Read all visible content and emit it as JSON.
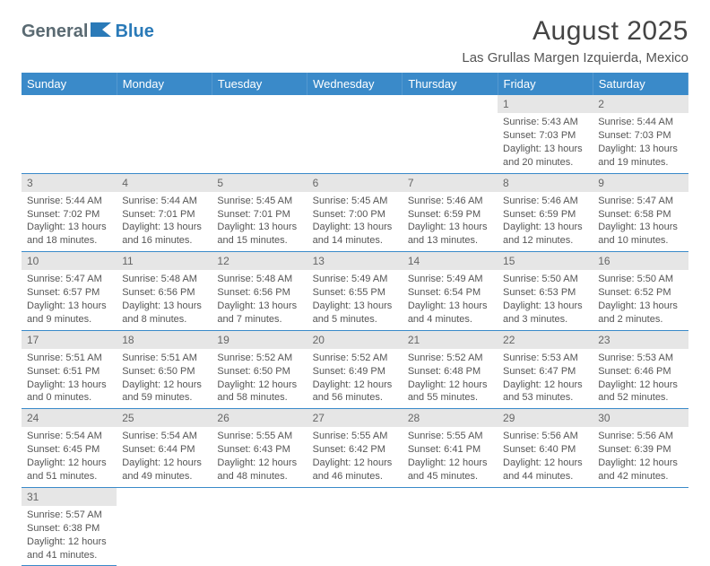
{
  "logo": {
    "part1": "General",
    "part2": "Blue"
  },
  "title": "August 2025",
  "location": "Las Grullas Margen Izquierda, Mexico",
  "colors": {
    "header_bg": "#3a8ac9",
    "header_fg": "#ffffff",
    "daynum_bg": "#e6e6e6",
    "daynum_fg": "#666666",
    "cell_border": "#3a8ac9",
    "body_text": "#555555",
    "logo_gray": "#5a6a72",
    "logo_blue": "#2a7ab8"
  },
  "weekdays": [
    "Sunday",
    "Monday",
    "Tuesday",
    "Wednesday",
    "Thursday",
    "Friday",
    "Saturday"
  ],
  "weeks": [
    [
      null,
      null,
      null,
      null,
      null,
      {
        "n": "1",
        "sr": "Sunrise: 5:43 AM",
        "ss": "Sunset: 7:03 PM",
        "dl": "Daylight: 13 hours and 20 minutes."
      },
      {
        "n": "2",
        "sr": "Sunrise: 5:44 AM",
        "ss": "Sunset: 7:03 PM",
        "dl": "Daylight: 13 hours and 19 minutes."
      }
    ],
    [
      {
        "n": "3",
        "sr": "Sunrise: 5:44 AM",
        "ss": "Sunset: 7:02 PM",
        "dl": "Daylight: 13 hours and 18 minutes."
      },
      {
        "n": "4",
        "sr": "Sunrise: 5:44 AM",
        "ss": "Sunset: 7:01 PM",
        "dl": "Daylight: 13 hours and 16 minutes."
      },
      {
        "n": "5",
        "sr": "Sunrise: 5:45 AM",
        "ss": "Sunset: 7:01 PM",
        "dl": "Daylight: 13 hours and 15 minutes."
      },
      {
        "n": "6",
        "sr": "Sunrise: 5:45 AM",
        "ss": "Sunset: 7:00 PM",
        "dl": "Daylight: 13 hours and 14 minutes."
      },
      {
        "n": "7",
        "sr": "Sunrise: 5:46 AM",
        "ss": "Sunset: 6:59 PM",
        "dl": "Daylight: 13 hours and 13 minutes."
      },
      {
        "n": "8",
        "sr": "Sunrise: 5:46 AM",
        "ss": "Sunset: 6:59 PM",
        "dl": "Daylight: 13 hours and 12 minutes."
      },
      {
        "n": "9",
        "sr": "Sunrise: 5:47 AM",
        "ss": "Sunset: 6:58 PM",
        "dl": "Daylight: 13 hours and 10 minutes."
      }
    ],
    [
      {
        "n": "10",
        "sr": "Sunrise: 5:47 AM",
        "ss": "Sunset: 6:57 PM",
        "dl": "Daylight: 13 hours and 9 minutes."
      },
      {
        "n": "11",
        "sr": "Sunrise: 5:48 AM",
        "ss": "Sunset: 6:56 PM",
        "dl": "Daylight: 13 hours and 8 minutes."
      },
      {
        "n": "12",
        "sr": "Sunrise: 5:48 AM",
        "ss": "Sunset: 6:56 PM",
        "dl": "Daylight: 13 hours and 7 minutes."
      },
      {
        "n": "13",
        "sr": "Sunrise: 5:49 AM",
        "ss": "Sunset: 6:55 PM",
        "dl": "Daylight: 13 hours and 5 minutes."
      },
      {
        "n": "14",
        "sr": "Sunrise: 5:49 AM",
        "ss": "Sunset: 6:54 PM",
        "dl": "Daylight: 13 hours and 4 minutes."
      },
      {
        "n": "15",
        "sr": "Sunrise: 5:50 AM",
        "ss": "Sunset: 6:53 PM",
        "dl": "Daylight: 13 hours and 3 minutes."
      },
      {
        "n": "16",
        "sr": "Sunrise: 5:50 AM",
        "ss": "Sunset: 6:52 PM",
        "dl": "Daylight: 13 hours and 2 minutes."
      }
    ],
    [
      {
        "n": "17",
        "sr": "Sunrise: 5:51 AM",
        "ss": "Sunset: 6:51 PM",
        "dl": "Daylight: 13 hours and 0 minutes."
      },
      {
        "n": "18",
        "sr": "Sunrise: 5:51 AM",
        "ss": "Sunset: 6:50 PM",
        "dl": "Daylight: 12 hours and 59 minutes."
      },
      {
        "n": "19",
        "sr": "Sunrise: 5:52 AM",
        "ss": "Sunset: 6:50 PM",
        "dl": "Daylight: 12 hours and 58 minutes."
      },
      {
        "n": "20",
        "sr": "Sunrise: 5:52 AM",
        "ss": "Sunset: 6:49 PM",
        "dl": "Daylight: 12 hours and 56 minutes."
      },
      {
        "n": "21",
        "sr": "Sunrise: 5:52 AM",
        "ss": "Sunset: 6:48 PM",
        "dl": "Daylight: 12 hours and 55 minutes."
      },
      {
        "n": "22",
        "sr": "Sunrise: 5:53 AM",
        "ss": "Sunset: 6:47 PM",
        "dl": "Daylight: 12 hours and 53 minutes."
      },
      {
        "n": "23",
        "sr": "Sunrise: 5:53 AM",
        "ss": "Sunset: 6:46 PM",
        "dl": "Daylight: 12 hours and 52 minutes."
      }
    ],
    [
      {
        "n": "24",
        "sr": "Sunrise: 5:54 AM",
        "ss": "Sunset: 6:45 PM",
        "dl": "Daylight: 12 hours and 51 minutes."
      },
      {
        "n": "25",
        "sr": "Sunrise: 5:54 AM",
        "ss": "Sunset: 6:44 PM",
        "dl": "Daylight: 12 hours and 49 minutes."
      },
      {
        "n": "26",
        "sr": "Sunrise: 5:55 AM",
        "ss": "Sunset: 6:43 PM",
        "dl": "Daylight: 12 hours and 48 minutes."
      },
      {
        "n": "27",
        "sr": "Sunrise: 5:55 AM",
        "ss": "Sunset: 6:42 PM",
        "dl": "Daylight: 12 hours and 46 minutes."
      },
      {
        "n": "28",
        "sr": "Sunrise: 5:55 AM",
        "ss": "Sunset: 6:41 PM",
        "dl": "Daylight: 12 hours and 45 minutes."
      },
      {
        "n": "29",
        "sr": "Sunrise: 5:56 AM",
        "ss": "Sunset: 6:40 PM",
        "dl": "Daylight: 12 hours and 44 minutes."
      },
      {
        "n": "30",
        "sr": "Sunrise: 5:56 AM",
        "ss": "Sunset: 6:39 PM",
        "dl": "Daylight: 12 hours and 42 minutes."
      }
    ],
    [
      {
        "n": "31",
        "sr": "Sunrise: 5:57 AM",
        "ss": "Sunset: 6:38 PM",
        "dl": "Daylight: 12 hours and 41 minutes."
      },
      null,
      null,
      null,
      null,
      null,
      null
    ]
  ]
}
